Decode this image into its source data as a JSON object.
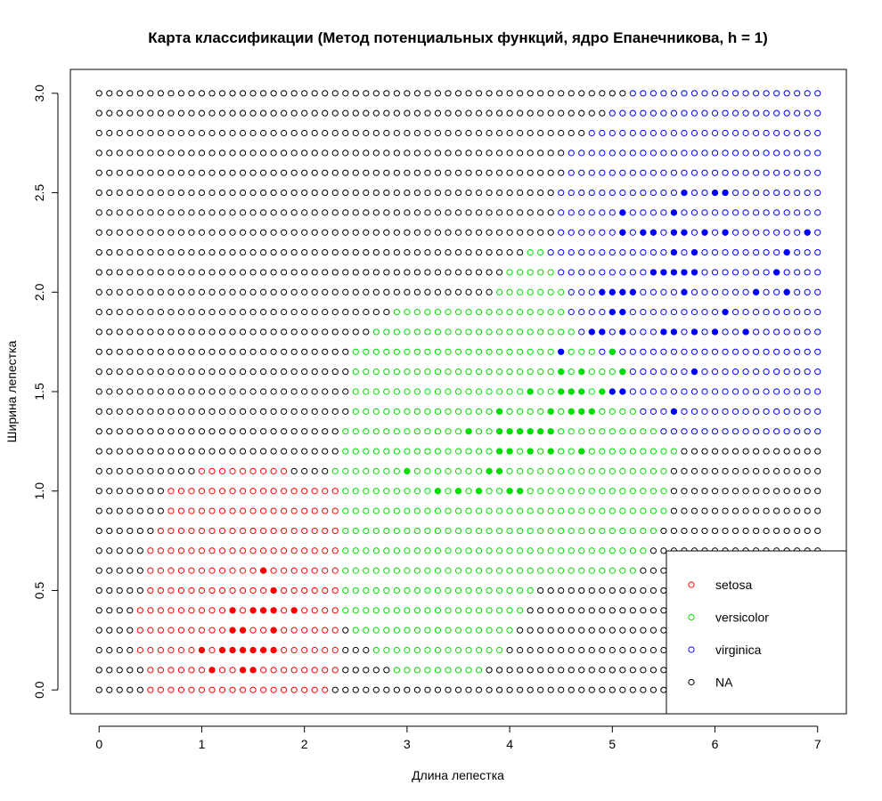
{
  "chart_data": {
    "type": "scatter",
    "title": "Карта классификации (Метод потенциальных функций, ядро Епанечникова, h = 1)",
    "xlabel": "Длина лепестка",
    "ylabel": "Ширина лепестка",
    "xlim": [
      -0.28,
      7.28
    ],
    "ylim": [
      -0.12,
      3.12
    ],
    "x_ticks": [
      0,
      1,
      2,
      3,
      4,
      5,
      6,
      7
    ],
    "y_ticks": [
      0.0,
      0.5,
      1.0,
      1.5,
      2.0,
      2.5,
      3.0
    ],
    "y_tick_labels": [
      "0.0",
      "0.5",
      "1.0",
      "1.5",
      "2.0",
      "2.5",
      "3.0"
    ],
    "grid": {
      "x_start": 0,
      "x_end": 7,
      "x_step": 0.1,
      "y_start": 0,
      "y_end": 3,
      "y_step": 0.1
    },
    "classes": {
      "setosa": {
        "color": "#ff0000"
      },
      "versicolor": {
        "color": "#00dd00"
      },
      "virginica": {
        "color": "#0000ff"
      },
      "NA": {
        "color": "#000000"
      }
    },
    "class_regions": [
      {
        "y": 0.0,
        "runs": [
          [
            0.5,
            2.2,
            "setosa"
          ]
        ]
      },
      {
        "y": 0.1,
        "runs": [
          [
            0.5,
            2.3,
            "setosa"
          ],
          [
            2.9,
            3.7,
            "versicolor"
          ]
        ]
      },
      {
        "y": 0.2,
        "runs": [
          [
            0.4,
            2.3,
            "setosa"
          ],
          [
            2.7,
            3.9,
            "versicolor"
          ]
        ]
      },
      {
        "y": 0.3,
        "runs": [
          [
            0.4,
            2.3,
            "setosa"
          ],
          [
            2.5,
            4.0,
            "versicolor"
          ]
        ]
      },
      {
        "y": 0.4,
        "runs": [
          [
            0.4,
            2.3,
            "setosa"
          ],
          [
            2.4,
            4.1,
            "versicolor"
          ]
        ]
      },
      {
        "y": 0.5,
        "runs": [
          [
            0.5,
            2.3,
            "setosa"
          ],
          [
            2.4,
            4.2,
            "versicolor"
          ]
        ]
      },
      {
        "y": 0.6,
        "runs": [
          [
            0.5,
            2.3,
            "setosa"
          ],
          [
            2.4,
            5.2,
            "versicolor"
          ]
        ]
      },
      {
        "y": 0.7,
        "runs": [
          [
            0.5,
            2.3,
            "setosa"
          ],
          [
            2.4,
            5.3,
            "versicolor"
          ]
        ]
      },
      {
        "y": 0.8,
        "runs": [
          [
            0.6,
            2.3,
            "setosa"
          ],
          [
            2.4,
            5.4,
            "versicolor"
          ]
        ]
      },
      {
        "y": 0.9,
        "runs": [
          [
            0.7,
            2.3,
            "setosa"
          ],
          [
            2.4,
            5.5,
            "versicolor"
          ]
        ]
      },
      {
        "y": 1.0,
        "runs": [
          [
            0.7,
            2.3,
            "setosa"
          ],
          [
            2.3,
            5.5,
            "versicolor"
          ]
        ]
      },
      {
        "y": 1.1,
        "runs": [
          [
            1.0,
            1.8,
            "setosa"
          ],
          [
            2.3,
            5.5,
            "versicolor"
          ]
        ]
      },
      {
        "y": 1.2,
        "runs": [
          [
            2.4,
            5.6,
            "versicolor"
          ]
        ]
      },
      {
        "y": 1.3,
        "runs": [
          [
            2.4,
            5.4,
            "versicolor"
          ],
          [
            5.5,
            7.0,
            "virginica"
          ]
        ]
      },
      {
        "y": 1.4,
        "runs": [
          [
            2.5,
            5.2,
            "versicolor"
          ],
          [
            5.3,
            7.0,
            "virginica"
          ]
        ]
      },
      {
        "y": 1.5,
        "runs": [
          [
            2.5,
            5.0,
            "versicolor"
          ],
          [
            5.1,
            7.0,
            "virginica"
          ]
        ]
      },
      {
        "y": 1.6,
        "runs": [
          [
            2.5,
            5.0,
            "versicolor"
          ],
          [
            5.1,
            7.0,
            "virginica"
          ]
        ]
      },
      {
        "y": 1.7,
        "runs": [
          [
            2.5,
            4.8,
            "versicolor"
          ],
          [
            4.9,
            7.0,
            "virginica"
          ]
        ]
      },
      {
        "y": 1.8,
        "runs": [
          [
            2.7,
            4.6,
            "versicolor"
          ],
          [
            4.7,
            7.0,
            "virginica"
          ]
        ]
      },
      {
        "y": 1.9,
        "runs": [
          [
            2.9,
            4.5,
            "versicolor"
          ],
          [
            4.6,
            7.0,
            "virginica"
          ]
        ]
      },
      {
        "y": 2.0,
        "runs": [
          [
            3.9,
            4.5,
            "versicolor"
          ],
          [
            4.6,
            7.0,
            "virginica"
          ]
        ]
      },
      {
        "y": 2.1,
        "runs": [
          [
            4.0,
            4.4,
            "versicolor"
          ],
          [
            4.5,
            7.0,
            "virginica"
          ]
        ]
      },
      {
        "y": 2.2,
        "runs": [
          [
            4.2,
            4.3,
            "versicolor"
          ],
          [
            4.4,
            7.0,
            "virginica"
          ]
        ]
      },
      {
        "y": 2.3,
        "runs": [
          [
            4.5,
            7.0,
            "virginica"
          ]
        ]
      },
      {
        "y": 2.4,
        "runs": [
          [
            4.5,
            7.0,
            "virginica"
          ]
        ]
      },
      {
        "y": 2.5,
        "runs": [
          [
            4.5,
            7.0,
            "virginica"
          ]
        ]
      },
      {
        "y": 2.6,
        "runs": [
          [
            4.6,
            7.0,
            "virginica"
          ]
        ]
      },
      {
        "y": 2.7,
        "runs": [
          [
            4.6,
            7.0,
            "virginica"
          ]
        ]
      },
      {
        "y": 2.8,
        "runs": [
          [
            4.8,
            7.0,
            "virginica"
          ]
        ]
      },
      {
        "y": 2.9,
        "runs": [
          [
            5.0,
            7.0,
            "virginica"
          ]
        ]
      },
      {
        "y": 3.0,
        "runs": [
          [
            5.2,
            7.0,
            "virginica"
          ]
        ]
      }
    ],
    "series": [
      {
        "name": "setosa",
        "points": [
          [
            1.1,
            0.1
          ],
          [
            1.4,
            0.1
          ],
          [
            1.5,
            0.1
          ],
          [
            1.0,
            0.2
          ],
          [
            1.2,
            0.2
          ],
          [
            1.3,
            0.2
          ],
          [
            1.4,
            0.2
          ],
          [
            1.5,
            0.2
          ],
          [
            1.6,
            0.2
          ],
          [
            1.7,
            0.2
          ],
          [
            1.3,
            0.3
          ],
          [
            1.4,
            0.3
          ],
          [
            1.7,
            0.3
          ],
          [
            1.3,
            0.4
          ],
          [
            1.5,
            0.4
          ],
          [
            1.6,
            0.4
          ],
          [
            1.7,
            0.4
          ],
          [
            1.9,
            0.4
          ],
          [
            1.7,
            0.5
          ],
          [
            1.6,
            0.6
          ]
        ]
      },
      {
        "name": "versicolor",
        "points": [
          [
            3.3,
            1.0
          ],
          [
            3.5,
            1.0
          ],
          [
            3.7,
            1.0
          ],
          [
            4.0,
            1.0
          ],
          [
            4.1,
            1.0
          ],
          [
            3.0,
            1.1
          ],
          [
            3.8,
            1.1
          ],
          [
            3.9,
            1.1
          ],
          [
            3.9,
            1.2
          ],
          [
            4.0,
            1.2
          ],
          [
            4.2,
            1.2
          ],
          [
            4.4,
            1.2
          ],
          [
            4.7,
            1.2
          ],
          [
            3.6,
            1.3
          ],
          [
            3.9,
            1.3
          ],
          [
            4.0,
            1.3
          ],
          [
            4.1,
            1.3
          ],
          [
            4.2,
            1.3
          ],
          [
            4.3,
            1.3
          ],
          [
            4.4,
            1.3
          ],
          [
            3.9,
            1.4
          ],
          [
            4.4,
            1.4
          ],
          [
            4.6,
            1.4
          ],
          [
            4.7,
            1.4
          ],
          [
            4.8,
            1.4
          ],
          [
            4.2,
            1.5
          ],
          [
            4.5,
            1.5
          ],
          [
            4.6,
            1.5
          ],
          [
            4.7,
            1.5
          ],
          [
            4.9,
            1.5
          ],
          [
            4.5,
            1.6
          ],
          [
            4.7,
            1.6
          ],
          [
            5.1,
            1.6
          ],
          [
            5.0,
            1.7
          ]
        ]
      },
      {
        "name": "virginica",
        "points": [
          [
            5.1,
            1.5
          ],
          [
            5.0,
            1.5
          ],
          [
            5.6,
            1.4
          ],
          [
            5.8,
            1.6
          ],
          [
            4.5,
            1.7
          ],
          [
            4.8,
            1.8
          ],
          [
            4.9,
            1.8
          ],
          [
            5.1,
            1.8
          ],
          [
            5.5,
            1.8
          ],
          [
            5.6,
            1.8
          ],
          [
            5.8,
            1.8
          ],
          [
            6.0,
            1.8
          ],
          [
            6.3,
            1.8
          ],
          [
            5.0,
            1.9
          ],
          [
            5.1,
            1.9
          ],
          [
            6.1,
            1.9
          ],
          [
            4.9,
            2.0
          ],
          [
            5.0,
            2.0
          ],
          [
            5.1,
            2.0
          ],
          [
            5.2,
            2.0
          ],
          [
            5.7,
            2.0
          ],
          [
            6.4,
            2.0
          ],
          [
            6.7,
            2.0
          ],
          [
            5.4,
            2.1
          ],
          [
            5.5,
            2.1
          ],
          [
            5.6,
            2.1
          ],
          [
            5.7,
            2.1
          ],
          [
            5.8,
            2.1
          ],
          [
            6.6,
            2.1
          ],
          [
            5.6,
            2.2
          ],
          [
            5.8,
            2.2
          ],
          [
            6.7,
            2.2
          ],
          [
            5.1,
            2.3
          ],
          [
            5.3,
            2.3
          ],
          [
            5.4,
            2.3
          ],
          [
            5.6,
            2.3
          ],
          [
            5.7,
            2.3
          ],
          [
            5.9,
            2.3
          ],
          [
            6.1,
            2.3
          ],
          [
            6.9,
            2.3
          ],
          [
            5.1,
            2.4
          ],
          [
            5.6,
            2.4
          ],
          [
            5.7,
            2.5
          ],
          [
            6.0,
            2.5
          ],
          [
            6.1,
            2.5
          ]
        ]
      }
    ],
    "legend": {
      "position": "bottom-right",
      "entries": [
        {
          "label": "setosa",
          "color": "#ff0000"
        },
        {
          "label": "versicolor",
          "color": "#00dd00"
        },
        {
          "label": "virginica",
          "color": "#0000ff"
        },
        {
          "label": "NA",
          "color": "#000000"
        }
      ]
    }
  }
}
